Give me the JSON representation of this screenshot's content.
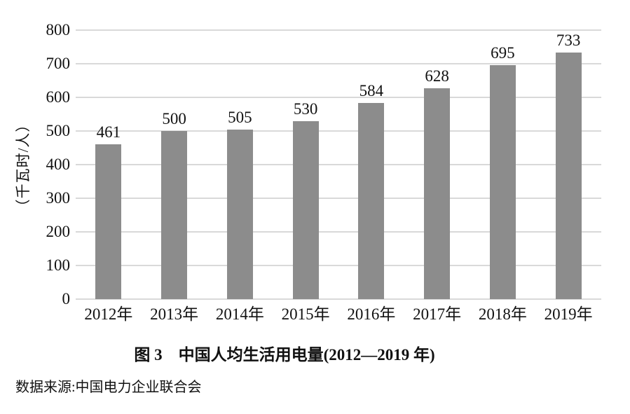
{
  "figure": {
    "caption": "图 3　中国人均生活用电量(2012—2019 年)",
    "source": "数据来源:中国电力企业联合会"
  },
  "chart_data": {
    "type": "bar",
    "title": "图 3　中国人均生活用电量(2012—2019 年)",
    "categories": [
      "2012年",
      "2013年",
      "2014年",
      "2015年",
      "2016年",
      "2017年",
      "2018年",
      "2019年"
    ],
    "values": [
      461,
      500,
      505,
      530,
      584,
      628,
      695,
      733
    ],
    "xlabel": "",
    "ylabel": "（千瓦时/人）",
    "yticks": [
      0,
      100,
      200,
      300,
      400,
      500,
      600,
      700,
      800
    ],
    "ylim": [
      0,
      800
    ],
    "grid": true,
    "legend_position": "none",
    "bar_color": "#8c8c8c",
    "gridline_color": "#d9d9d9",
    "text_color": "#111111",
    "data_labels": true,
    "source": "数据来源:中国电力企业联合会"
  }
}
